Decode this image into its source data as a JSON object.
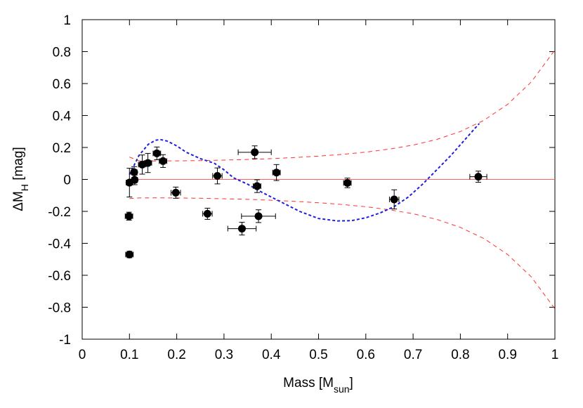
{
  "chart_data": {
    "type": "scatter",
    "xlabel": "Mass [M",
    "xlabel_sub": "sun",
    "xlabel_close": "]",
    "ylabel_delta": "ΔM",
    "ylabel_sub": "H",
    "ylabel_rest": " [mag]",
    "xlim": [
      0,
      1
    ],
    "ylim": [
      -1,
      1
    ],
    "x_ticks": [
      0,
      0.1,
      0.2,
      0.3,
      0.4,
      0.5,
      0.6,
      0.7,
      0.8,
      0.9,
      1
    ],
    "x_tick_labels": [
      "0",
      "0.1",
      "0.2",
      "0.3",
      "0.4",
      "0.5",
      "0.6",
      "0.7",
      "0.8",
      "0.9",
      "1"
    ],
    "y_ticks": [
      -1,
      -0.8,
      -0.6,
      -0.4,
      -0.2,
      0,
      0.2,
      0.4,
      0.6,
      0.8,
      1
    ],
    "y_tick_labels": [
      "-1",
      "-0.8",
      "-0.6",
      "-0.4",
      "-0.2",
      "0",
      "0.2",
      "0.4",
      "0.6",
      "0.8",
      "1"
    ],
    "grid": false,
    "points": [
      {
        "x": 0.1,
        "y": -0.47,
        "xerr": 0.008,
        "yerr": 0.02
      },
      {
        "x": 0.099,
        "y": -0.23,
        "xerr": 0.008,
        "yerr": 0.025
      },
      {
        "x": 0.1,
        "y": -0.02,
        "xerr": 0.007,
        "yerr": 0.09
      },
      {
        "x": 0.111,
        "y": -0.003,
        "xerr": 0.006,
        "yerr": 0.03
      },
      {
        "x": 0.11,
        "y": 0.045,
        "xerr": 0.006,
        "yerr": 0.035
      },
      {
        "x": 0.127,
        "y": 0.093,
        "xerr": 0.008,
        "yerr": 0.06
      },
      {
        "x": 0.139,
        "y": 0.103,
        "xerr": 0.008,
        "yerr": 0.06
      },
      {
        "x": 0.158,
        "y": 0.163,
        "xerr": 0.008,
        "yerr": 0.04
      },
      {
        "x": 0.171,
        "y": 0.115,
        "xerr": 0.008,
        "yerr": 0.04
      },
      {
        "x": 0.198,
        "y": -0.083,
        "xerr": 0.01,
        "yerr": 0.035
      },
      {
        "x": 0.265,
        "y": -0.215,
        "xerr": 0.01,
        "yerr": 0.035
      },
      {
        "x": 0.286,
        "y": 0.022,
        "xerr": 0.01,
        "yerr": 0.05
      },
      {
        "x": 0.338,
        "y": -0.308,
        "xerr": 0.03,
        "yerr": 0.04
      },
      {
        "x": 0.365,
        "y": 0.17,
        "xerr": 0.035,
        "yerr": 0.04
      },
      {
        "x": 0.37,
        "y": -0.042,
        "xerr": 0.008,
        "yerr": 0.04
      },
      {
        "x": 0.373,
        "y": -0.23,
        "xerr": 0.036,
        "yerr": 0.04
      },
      {
        "x": 0.411,
        "y": 0.043,
        "xerr": 0.008,
        "yerr": 0.05
      },
      {
        "x": 0.561,
        "y": -0.022,
        "xerr": 0.008,
        "yerr": 0.03
      },
      {
        "x": 0.66,
        "y": -0.125,
        "xerr": 0.01,
        "yerr": 0.06
      },
      {
        "x": 0.838,
        "y": 0.017,
        "xerr": 0.018,
        "yerr": 0.035
      }
    ],
    "reference_line": {
      "y": 0,
      "x_range": [
        0.1,
        1.0
      ],
      "color": "#ff6060"
    },
    "envelope_upper": {
      "color": "#ff3030",
      "x": [
        0.1,
        0.12,
        0.15,
        0.2,
        0.25,
        0.3,
        0.35,
        0.4,
        0.45,
        0.5,
        0.55,
        0.6,
        0.65,
        0.7,
        0.75,
        0.8,
        0.85,
        0.9,
        0.95,
        1.0
      ],
      "y": [
        0.14,
        0.116,
        0.115,
        0.116,
        0.118,
        0.121,
        0.125,
        0.13,
        0.137,
        0.146,
        0.157,
        0.171,
        0.19,
        0.215,
        0.25,
        0.3,
        0.37,
        0.47,
        0.61,
        0.81
      ]
    },
    "envelope_lower": {
      "color": "#ff3030",
      "x": [
        0.1,
        0.12,
        0.15,
        0.2,
        0.25,
        0.3,
        0.35,
        0.4,
        0.45,
        0.5,
        0.55,
        0.6,
        0.65,
        0.7,
        0.75,
        0.8,
        0.85,
        0.9,
        0.95,
        1.0
      ],
      "y": [
        -0.12,
        -0.116,
        -0.115,
        -0.116,
        -0.118,
        -0.121,
        -0.125,
        -0.13,
        -0.137,
        -0.146,
        -0.157,
        -0.171,
        -0.19,
        -0.215,
        -0.25,
        -0.3,
        -0.37,
        -0.47,
        -0.61,
        -0.81
      ]
    },
    "model_curve": {
      "color": "#1f1fdd",
      "x": [
        0.1,
        0.12,
        0.14,
        0.155,
        0.165,
        0.18,
        0.2,
        0.22,
        0.25,
        0.28,
        0.3,
        0.32,
        0.35,
        0.38,
        0.42,
        0.46,
        0.5,
        0.54,
        0.57,
        0.6,
        0.63,
        0.66,
        0.69,
        0.72,
        0.75,
        0.78,
        0.81,
        0.84
      ],
      "y": [
        0.03,
        0.15,
        0.22,
        0.245,
        0.25,
        0.24,
        0.21,
        0.17,
        0.13,
        0.1,
        0.06,
        0.01,
        -0.03,
        -0.08,
        -0.14,
        -0.2,
        -0.245,
        -0.26,
        -0.258,
        -0.24,
        -0.21,
        -0.17,
        -0.11,
        -0.03,
        0.06,
        0.15,
        0.25,
        0.35
      ]
    }
  }
}
